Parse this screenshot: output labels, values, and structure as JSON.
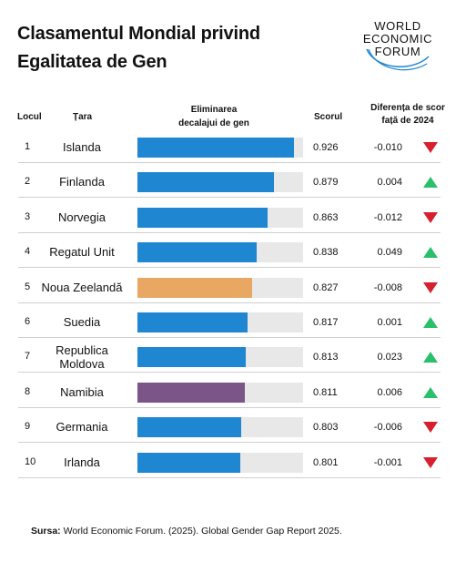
{
  "title_line1": "Clasamentul Mondial privind",
  "title_line2": "Egalitatea de Gen",
  "logo": {
    "line1": "WORLD",
    "line2": "ECONOMIC",
    "line3": "FORUM"
  },
  "headers": {
    "rank": "Locul",
    "country": "Țara",
    "bar_line1": "Eliminarea",
    "bar_line2": "decalajui de gen",
    "score": "Scorul",
    "diff_line1": "Diferența de scor",
    "diff_line2": "față de 2024"
  },
  "colors": {
    "default": "#1f86d1",
    "highlight_orange": "#e9a764",
    "highlight_purple": "#7b5588",
    "up": "#2bbf6b",
    "down": "#d6202f"
  },
  "chart_data": {
    "type": "bar",
    "categories": [
      "Islanda",
      "Finlanda",
      "Norvegia",
      "Regatul Unit",
      "Noua Zeelandă",
      "Suedia",
      "Republica Moldova",
      "Namibia",
      "Germania",
      "Irlanda"
    ],
    "ranks": [
      "1",
      "2",
      "3",
      "4",
      "5",
      "6",
      "7",
      "8",
      "9",
      "10"
    ],
    "values": [
      0.926,
      0.879,
      0.863,
      0.838,
      0.827,
      0.817,
      0.813,
      0.811,
      0.803,
      0.801
    ],
    "score_labels": [
      "0.926",
      "0.879",
      "0.863",
      "0.838",
      "0.827",
      "0.817",
      "0.813",
      "0.811",
      "0.803",
      "0.801"
    ],
    "diff_labels": [
      "-0.010",
      "0.004",
      "-0.012",
      "0.049",
      "-0.008",
      "0.001",
      "0.023",
      "0.006",
      "-0.006",
      "-0.001"
    ],
    "trend": [
      "down",
      "up",
      "down",
      "up",
      "down",
      "up",
      "up",
      "up",
      "down",
      "down"
    ],
    "bar_colors": [
      "default",
      "default",
      "default",
      "default",
      "highlight_orange",
      "default",
      "default",
      "highlight_purple",
      "default",
      "default"
    ],
    "ylim": [
      0,
      1
    ]
  },
  "source_label": "Sursa:",
  "source_text": " World Economic Forum. (2025). Global Gender Gap Report 2025."
}
